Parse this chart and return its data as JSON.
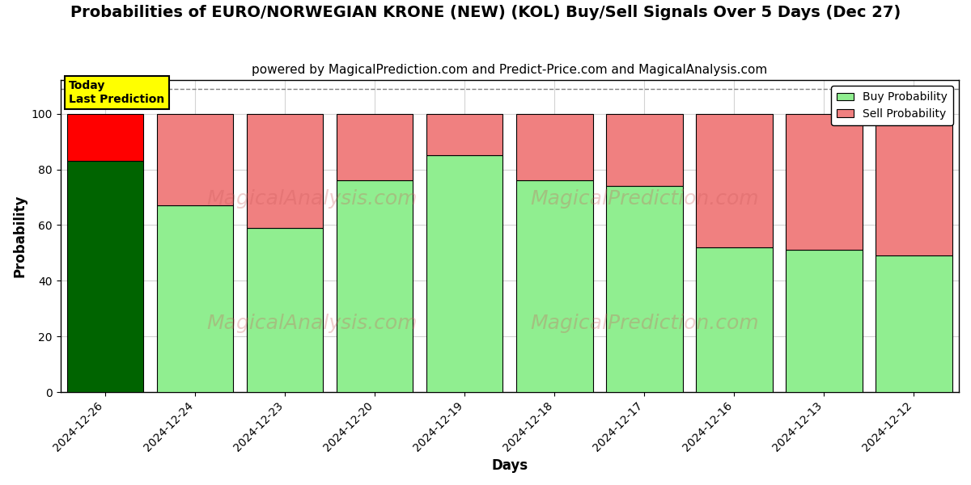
{
  "title": "Probabilities of EURO/NORWEGIAN KRONE (NEW) (KOL) Buy/Sell Signals Over 5 Days (Dec 27)",
  "subtitle": "powered by MagicalPrediction.com and Predict-Price.com and MagicalAnalysis.com",
  "xlabel": "Days",
  "ylabel": "Probability",
  "categories": [
    "2024-12-26",
    "2024-12-24",
    "2024-12-23",
    "2024-12-20",
    "2024-12-19",
    "2024-12-18",
    "2024-12-17",
    "2024-12-16",
    "2024-12-13",
    "2024-12-12"
  ],
  "buy_values": [
    83,
    67,
    59,
    76,
    85,
    76,
    74,
    52,
    51,
    49
  ],
  "sell_values": [
    17,
    33,
    41,
    24,
    15,
    24,
    26,
    48,
    49,
    51
  ],
  "today_bar_index": 0,
  "today_buy_color": "#006400",
  "today_sell_color": "#FF0000",
  "buy_color_light": "#90EE90",
  "sell_color_light": "#F08080",
  "today_label_bg": "#FFFF00",
  "ylim": [
    0,
    112
  ],
  "yticks": [
    0,
    20,
    40,
    60,
    80,
    100
  ],
  "dashed_line_y": 109,
  "legend_buy_label": "Buy Probability",
  "legend_sell_label": "Sell Probability",
  "bar_width": 0.85,
  "title_fontsize": 14,
  "subtitle_fontsize": 11,
  "axis_label_fontsize": 12,
  "tick_fontsize": 10
}
